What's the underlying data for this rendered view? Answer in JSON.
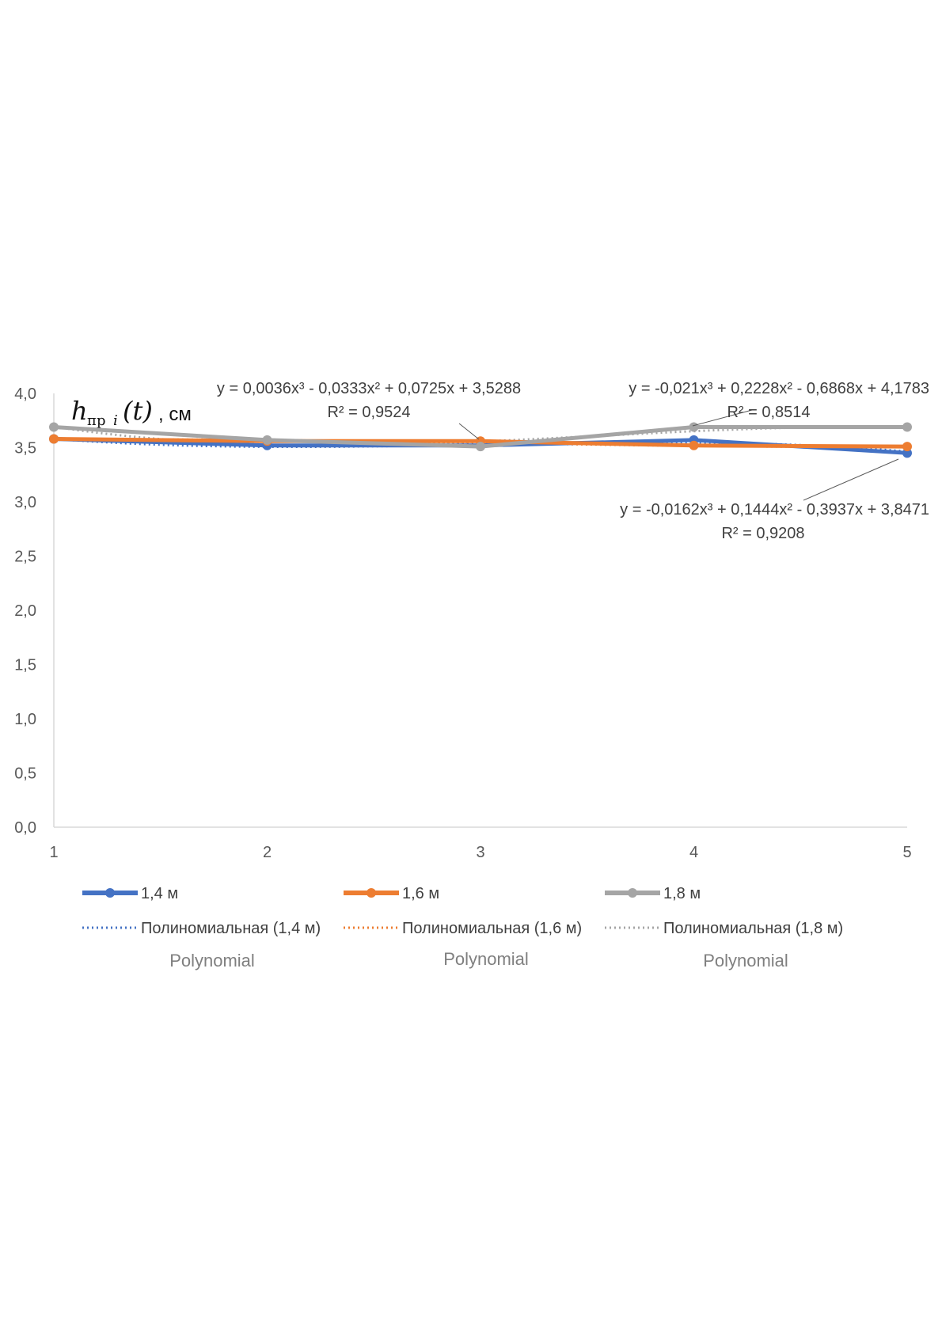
{
  "chart_data": {
    "type": "line",
    "ylabel": {
      "main": "h",
      "sub": "пр",
      "index": "i",
      "arg": "(t)",
      "unit": ", см"
    },
    "categories": [
      "1",
      "2",
      "3",
      "4",
      "5"
    ],
    "x": [
      1,
      2,
      3,
      4,
      5
    ],
    "ylim": [
      0,
      4
    ],
    "yticks": [
      "0,0",
      "0,5",
      "1,0",
      "1,5",
      "2,0",
      "2,5",
      "3,0",
      "3,5",
      "4,0"
    ],
    "ytick_values": [
      0,
      0.5,
      1.0,
      1.5,
      2.0,
      2.5,
      3.0,
      3.5,
      4.0
    ],
    "grid": false,
    "legend_position": "bottom",
    "series": [
      {
        "name": "1,4 м",
        "values": [
          3.58,
          3.52,
          3.52,
          3.57,
          3.45
        ],
        "color": "#4472C4"
      },
      {
        "name": "1,6 м",
        "values": [
          3.58,
          3.56,
          3.56,
          3.52,
          3.51
        ],
        "color": "#ED7D31"
      },
      {
        "name": "1,8 м",
        "values": [
          3.69,
          3.57,
          3.51,
          3.69,
          3.69
        ],
        "color": "#A5A5A5"
      }
    ],
    "trendlines": [
      {
        "name": "Полиномиальная (1,4 м)",
        "color": "#4472C4",
        "coef": [
          3.8471,
          -0.3937,
          0.1444,
          -0.0162
        ]
      },
      {
        "name": "Полиномиальная (1,6 м)",
        "color": "#ED7D31",
        "coef": [
          3.5288,
          0.0725,
          -0.0333,
          0.0036
        ]
      },
      {
        "name": "Полиномиальная (1,8 м)",
        "color": "#A5A5A5",
        "coef": [
          4.1783,
          -0.6868,
          0.2228,
          -0.021
        ]
      }
    ],
    "annotations": [
      {
        "equation": "y = 0,0036x³ - 0,0333x² + 0,0725x + 3,5288",
        "r2": "R² = 0,9524"
      },
      {
        "equation": "y = -0,021x³ + 0,2228x² - 0,6868x + 4,1783",
        "r2": "R² = 0,8514"
      },
      {
        "equation": "y = -0,0162x³ + 0,1444x² - 0,3937x + 3,8471",
        "r2": "R² = 0,9208"
      }
    ],
    "polynomial_labels": [
      "Polynomial",
      "Polynomial",
      "Polynomial"
    ]
  }
}
